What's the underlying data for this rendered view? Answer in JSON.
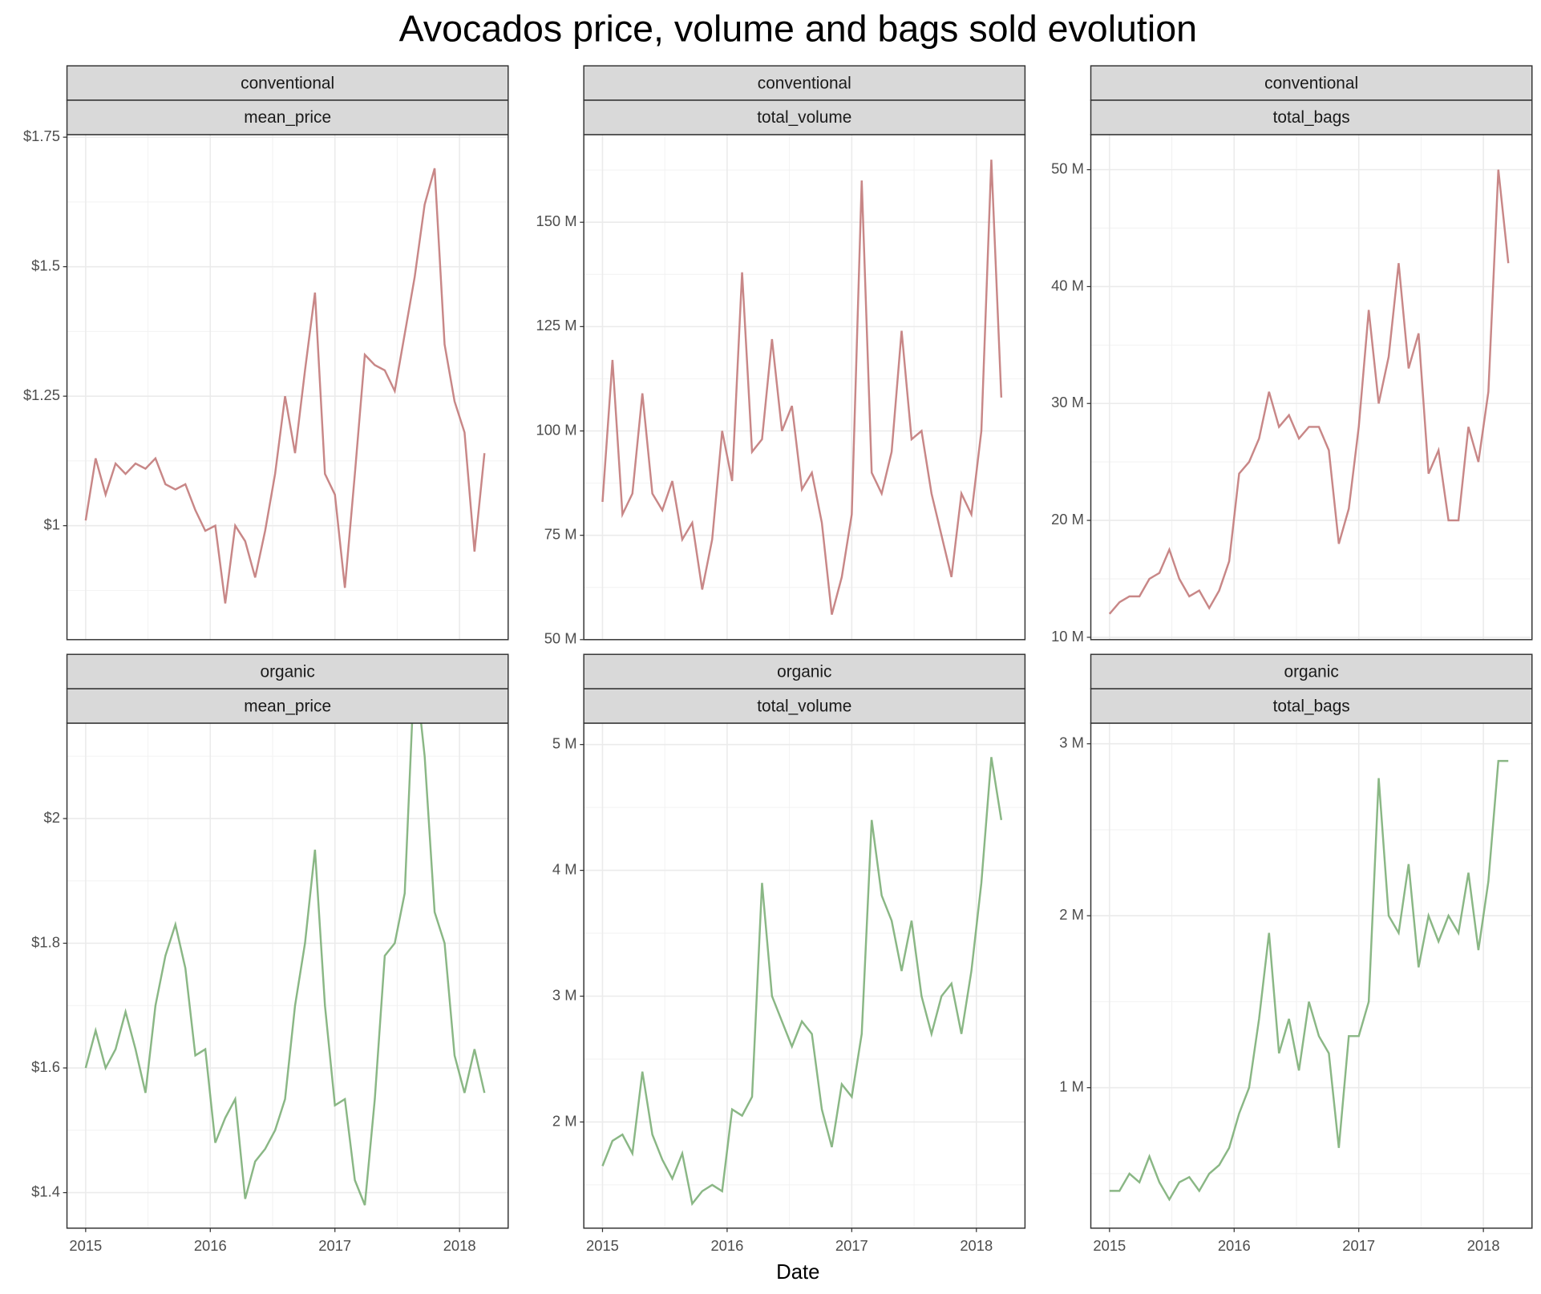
{
  "title": "Avocados price, volume and bags sold evolution",
  "xlabel": "Date",
  "chart_data": [
    {
      "type": "line",
      "facets": [
        "conventional",
        "mean_price"
      ],
      "color": "#c27a7a",
      "x": [
        2015.0,
        2015.08,
        2015.16,
        2015.24,
        2015.32,
        2015.4,
        2015.48,
        2015.56,
        2015.64,
        2015.72,
        2015.8,
        2015.88,
        2015.96,
        2016.04,
        2016.12,
        2016.2,
        2016.28,
        2016.36,
        2016.44,
        2016.52,
        2016.6,
        2016.68,
        2016.76,
        2016.84,
        2016.92,
        2017.0,
        2017.08,
        2017.16,
        2017.24,
        2017.32,
        2017.4,
        2017.48,
        2017.56,
        2017.64,
        2017.72,
        2017.8,
        2017.88,
        2017.96,
        2018.04,
        2018.12,
        2018.2
      ],
      "values": [
        1.01,
        1.13,
        1.06,
        1.12,
        1.1,
        1.12,
        1.11,
        1.13,
        1.08,
        1.07,
        1.08,
        1.03,
        0.99,
        1.0,
        0.85,
        1.0,
        0.97,
        0.9,
        0.99,
        1.1,
        1.25,
        1.14,
        1.3,
        1.45,
        1.1,
        1.06,
        0.88,
        1.1,
        1.33,
        1.31,
        1.3,
        1.26,
        1.37,
        1.48,
        1.62,
        1.69,
        1.35,
        1.24,
        1.18,
        0.95,
        1.14
      ],
      "xlim": [
        2014.85,
        2018.39
      ],
      "xticks": [
        2015,
        2016,
        2017,
        2018
      ],
      "ylim": [
        0.78,
        1.755
      ],
      "yticks": [
        {
          "value": 1,
          "label": "$1"
        },
        {
          "value": 1.25,
          "label": "$1.25"
        },
        {
          "value": 1.5,
          "label": "$1.5"
        },
        {
          "value": 1.75,
          "label": "$1.75"
        }
      ],
      "grid": true
    },
    {
      "type": "line",
      "facets": [
        "conventional",
        "total_volume"
      ],
      "color": "#c27a7a",
      "x": [
        2015.0,
        2015.08,
        2015.16,
        2015.24,
        2015.32,
        2015.4,
        2015.48,
        2015.56,
        2015.64,
        2015.72,
        2015.8,
        2015.88,
        2015.96,
        2016.04,
        2016.12,
        2016.2,
        2016.28,
        2016.36,
        2016.44,
        2016.52,
        2016.6,
        2016.68,
        2016.76,
        2016.84,
        2016.92,
        2017.0,
        2017.08,
        2017.16,
        2017.24,
        2017.32,
        2017.4,
        2017.48,
        2017.56,
        2017.64,
        2017.72,
        2017.8,
        2017.88,
        2017.96,
        2018.04,
        2018.12,
        2018.2
      ],
      "values": [
        83000000.0,
        117000000.0,
        80000000.0,
        85000000.0,
        109000000.0,
        85000000.0,
        81000000.0,
        88000000.0,
        74000000.0,
        78000000.0,
        62000000.0,
        74000000.0,
        100000000.0,
        88000000.0,
        138000000.0,
        95000000.0,
        98000000.0,
        122000000.0,
        100000000.0,
        106000000.0,
        86000000.0,
        90000000.0,
        78000000.0,
        56000000.0,
        65000000.0,
        80000000.0,
        160000000.0,
        90000000.0,
        85000000.0,
        95000000.0,
        124000000.0,
        98000000.0,
        100000000.0,
        85000000.0,
        75000000.0,
        65000000.0,
        85000000.0,
        80000000.0,
        100000000.0,
        165000000.0,
        108000000.0
      ],
      "xlim": [
        2014.85,
        2018.39
      ],
      "xticks": [
        2015,
        2016,
        2017,
        2018
      ],
      "ylim": [
        50000000.0,
        171000000.0
      ],
      "yticks": [
        {
          "value": 50000000.0,
          "label": "50 M"
        },
        {
          "value": 75000000.0,
          "label": "75 M"
        },
        {
          "value": 100000000.0,
          "label": "100 M"
        },
        {
          "value": 125000000.0,
          "label": "125 M"
        },
        {
          "value": 150000000.0,
          "label": "150 M"
        }
      ],
      "grid": true
    },
    {
      "type": "line",
      "facets": [
        "conventional",
        "total_bags"
      ],
      "color": "#c27a7a",
      "x": [
        2015.0,
        2015.08,
        2015.16,
        2015.24,
        2015.32,
        2015.4,
        2015.48,
        2015.56,
        2015.64,
        2015.72,
        2015.8,
        2015.88,
        2015.96,
        2016.04,
        2016.12,
        2016.2,
        2016.28,
        2016.36,
        2016.44,
        2016.52,
        2016.6,
        2016.68,
        2016.76,
        2016.84,
        2016.92,
        2017.0,
        2017.08,
        2017.16,
        2017.24,
        2017.32,
        2017.4,
        2017.48,
        2017.56,
        2017.64,
        2017.72,
        2017.8,
        2017.88,
        2017.96,
        2018.04,
        2018.12,
        2018.2
      ],
      "values": [
        12000000.0,
        13000000.0,
        13500000.0,
        13500000.0,
        15000000.0,
        15500000.0,
        17500000.0,
        15000000.0,
        13500000.0,
        14000000.0,
        12500000.0,
        14000000.0,
        16500000.0,
        24000000.0,
        25000000.0,
        27000000.0,
        31000000.0,
        28000000.0,
        29000000.0,
        27000000.0,
        28000000.0,
        28000000.0,
        26000000.0,
        18000000.0,
        21000000.0,
        28000000.0,
        38000000.0,
        30000000.0,
        34000000.0,
        42000000.0,
        33000000.0,
        36000000.0,
        24000000.0,
        26000000.0,
        20000000.0,
        20000000.0,
        28000000.0,
        25000000.0,
        31000000.0,
        50000000.0,
        42000000.0
      ],
      "xlim": [
        2014.85,
        2018.39
      ],
      "xticks": [
        2015,
        2016,
        2017,
        2018
      ],
      "ylim": [
        9800000.0,
        53000000.0
      ],
      "yticks": [
        {
          "value": 10000000.0,
          "label": "10 M"
        },
        {
          "value": 20000000.0,
          "label": "20 M"
        },
        {
          "value": 30000000.0,
          "label": "30 M"
        },
        {
          "value": 40000000.0,
          "label": "40 M"
        },
        {
          "value": 50000000.0,
          "label": "50 M"
        }
      ],
      "grid": true
    },
    {
      "type": "line",
      "facets": [
        "organic",
        "mean_price"
      ],
      "color": "#7daf78",
      "x": [
        2015.0,
        2015.08,
        2015.16,
        2015.24,
        2015.32,
        2015.4,
        2015.48,
        2015.56,
        2015.64,
        2015.72,
        2015.8,
        2015.88,
        2015.96,
        2016.04,
        2016.12,
        2016.2,
        2016.28,
        2016.36,
        2016.44,
        2016.52,
        2016.6,
        2016.68,
        2016.76,
        2016.84,
        2016.92,
        2017.0,
        2017.08,
        2017.16,
        2017.24,
        2017.32,
        2017.4,
        2017.48,
        2017.56,
        2017.64,
        2017.72,
        2017.8,
        2017.88,
        2017.96,
        2018.04,
        2018.12,
        2018.2
      ],
      "values": [
        1.6,
        1.66,
        1.6,
        1.63,
        1.69,
        1.63,
        1.56,
        1.7,
        1.78,
        1.83,
        1.76,
        1.62,
        1.63,
        1.48,
        1.52,
        1.55,
        1.39,
        1.45,
        1.47,
        1.5,
        1.55,
        1.7,
        1.8,
        1.95,
        1.7,
        1.54,
        1.55,
        1.42,
        1.38,
        1.55,
        1.78,
        1.8,
        1.88,
        2.25,
        2.1,
        1.85,
        1.8,
        1.62,
        1.56,
        1.63,
        1.56
      ],
      "xlim": [
        2014.85,
        2018.39
      ],
      "xticks": [
        2015,
        2016,
        2017,
        2018
      ],
      "ylim": [
        1.343,
        2.153
      ],
      "yticks": [
        {
          "value": 1.4,
          "label": "$1.4"
        },
        {
          "value": 1.6,
          "label": "$1.6"
        },
        {
          "value": 1.8,
          "label": "$1.8"
        },
        {
          "value": 2,
          "label": "$2"
        }
      ],
      "grid": true
    },
    {
      "type": "line",
      "facets": [
        "organic",
        "total_volume"
      ],
      "color": "#7daf78",
      "x": [
        2015.0,
        2015.08,
        2015.16,
        2015.24,
        2015.32,
        2015.4,
        2015.48,
        2015.56,
        2015.64,
        2015.72,
        2015.8,
        2015.88,
        2015.96,
        2016.04,
        2016.12,
        2016.2,
        2016.28,
        2016.36,
        2016.44,
        2016.52,
        2016.6,
        2016.68,
        2016.76,
        2016.84,
        2016.92,
        2017.0,
        2017.08,
        2017.16,
        2017.24,
        2017.32,
        2017.4,
        2017.48,
        2017.56,
        2017.64,
        2017.72,
        2017.8,
        2017.88,
        2017.96,
        2018.04,
        2018.12,
        2018.2
      ],
      "values": [
        1650000.0,
        1850000.0,
        1900000.0,
        1750000.0,
        2400000.0,
        1900000.0,
        1700000.0,
        1550000.0,
        1750000.0,
        1350000.0,
        1450000.0,
        1500000.0,
        1450000.0,
        2100000.0,
        2050000.0,
        2200000.0,
        3900000.0,
        3000000.0,
        2800000.0,
        2600000.0,
        2800000.0,
        2700000.0,
        2100000.0,
        1800000.0,
        2300000.0,
        2200000.0,
        2700000.0,
        4400000.0,
        3800000.0,
        3600000.0,
        3200000.0,
        3600000.0,
        3000000.0,
        2700000.0,
        3000000.0,
        3100000.0,
        2700000.0,
        3200000.0,
        3900000.0,
        4900000.0,
        4400000.0
      ],
      "xlim": [
        2014.85,
        2018.39
      ],
      "xticks": [
        2015,
        2016,
        2017,
        2018
      ],
      "ylim": [
        1156000.0,
        5170000.0
      ],
      "yticks": [
        {
          "value": 2000000.0,
          "label": "2 M"
        },
        {
          "value": 3000000.0,
          "label": "3 M"
        },
        {
          "value": 4000000.0,
          "label": "4 M"
        },
        {
          "value": 5000000.0,
          "label": "5 M"
        }
      ],
      "grid": true
    },
    {
      "type": "line",
      "facets": [
        "organic",
        "total_bags"
      ],
      "color": "#7daf78",
      "x": [
        2015.0,
        2015.08,
        2015.16,
        2015.24,
        2015.32,
        2015.4,
        2015.48,
        2015.56,
        2015.64,
        2015.72,
        2015.8,
        2015.88,
        2015.96,
        2016.04,
        2016.12,
        2016.2,
        2016.28,
        2016.36,
        2016.44,
        2016.52,
        2016.6,
        2016.68,
        2016.76,
        2016.84,
        2016.92,
        2017.0,
        2017.08,
        2017.16,
        2017.24,
        2017.32,
        2017.4,
        2017.48,
        2017.56,
        2017.64,
        2017.72,
        2017.8,
        2017.88,
        2017.96,
        2018.04,
        2018.12,
        2018.2
      ],
      "values": [
        400000.0,
        400000.0,
        500000.0,
        450000.0,
        600000.0,
        450000.0,
        350000.0,
        450000.0,
        480000.0,
        400000.0,
        500000.0,
        550000.0,
        650000.0,
        850000.0,
        1000000.0,
        1400000.0,
        1900000.0,
        1200000.0,
        1400000.0,
        1100000.0,
        1500000.0,
        1300000.0,
        1200000.0,
        650000.0,
        1300000.0,
        1300000.0,
        1500000.0,
        2800000.0,
        2000000.0,
        1900000.0,
        2300000.0,
        1700000.0,
        2000000.0,
        1850000.0,
        2000000.0,
        1900000.0,
        2250000.0,
        1800000.0,
        2200000.0,
        2900000.0,
        2900000.0
      ],
      "xlim": [
        2014.85,
        2018.39
      ],
      "xticks": [
        2015,
        2016,
        2017,
        2018
      ],
      "ylim": [
        183000.0,
        3120000.0
      ],
      "yticks": [
        {
          "value": 1000000.0,
          "label": "1 M"
        },
        {
          "value": 2000000.0,
          "label": "2 M"
        },
        {
          "value": 3000000.0,
          "label": "3 M"
        }
      ],
      "grid": true
    }
  ]
}
